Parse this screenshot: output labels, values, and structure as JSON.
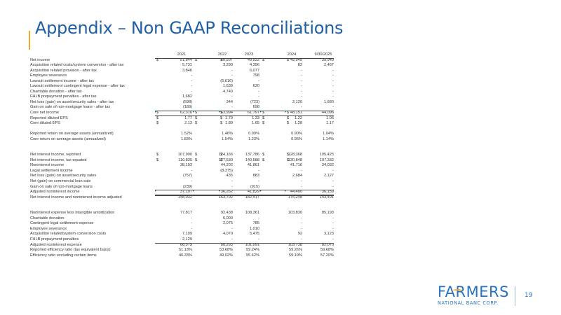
{
  "slide": {
    "title": "Appendix – Non GAAP Reconciliations",
    "accent_color": "#f5a623",
    "title_color": "#1f5fa6",
    "page_number": "19"
  },
  "logo": {
    "name": "FARMERS",
    "subtitle": "NATIONAL BANC CORP."
  },
  "table": {
    "columns": [
      "2021",
      "2022",
      "2023",
      "2024",
      "9/30/2025"
    ],
    "section1": [
      {
        "label": "Net income",
        "cur": true,
        "values": [
          "51,844",
          "60,597",
          "49,932",
          "45,949",
          "39,949"
        ]
      },
      {
        "label": "Acquisition related costs/system conversion - after tax",
        "values": [
          "5,731",
          "3,290",
          "4,396",
          "82",
          "2,467"
        ]
      },
      {
        "label": "Acquisition related provision - after tax",
        "values": [
          "3,846",
          "-",
          "6,077",
          "-",
          "-"
        ]
      },
      {
        "label": "Employee severance",
        "values": [
          "-",
          "-",
          "798",
          "-",
          "-"
        ]
      },
      {
        "label": "Lawsuit settlement income - after tax",
        "values": [
          "-",
          "(6,616)",
          "-",
          "-",
          "-"
        ]
      },
      {
        "label": "Lawsuit settlement contingent legal expense - after tax",
        "values": [
          "-",
          "1,639",
          "620",
          "-",
          "-"
        ]
      },
      {
        "label": "Charitable donation - after tax",
        "values": [
          "-",
          "4,740",
          "-",
          "-",
          "-"
        ]
      },
      {
        "label": "FHLB prepayment penalties - after tax",
        "values": [
          "1,682",
          "-",
          "-",
          "-",
          "-"
        ]
      },
      {
        "label": "Net loss (gain) on asset/security sales - after tax",
        "values": [
          "(598)",
          "344",
          "(723)",
          "2,120",
          "1,680"
        ]
      },
      {
        "label": "Gain on sale of non-mortgage loans - after tax",
        "values": [
          "(189)",
          "-",
          "698",
          "-",
          "-"
        ]
      },
      {
        "label": "Core net income",
        "cur": true,
        "values": [
          "62,316",
          "63,994",
          "61,797",
          "48,151",
          "44,096"
        ]
      },
      {
        "label": "Reported diluted EPS",
        "cur": true,
        "values": [
          "1.77",
          "1.79",
          "1.33",
          "1.22",
          "1.06"
        ]
      },
      {
        "label": "Core diluted EPS",
        "cur": true,
        "values": [
          "2.13",
          "1.89",
          "1.65",
          "1.28",
          "1.17"
        ]
      }
    ],
    "section2": [
      {
        "label": "Reported return on average assets (annualized)",
        "values": [
          "1.52%",
          "1.46%",
          "0.99%",
          "0.90%",
          "1.04%"
        ]
      },
      {
        "label": "Core return on average assets (annualized)",
        "values": [
          "1.83%",
          "1.54%",
          "1.23%",
          "0.95%",
          "1.14%"
        ]
      }
    ],
    "section3": [
      {
        "label": "Net interest income, reported",
        "cur": true,
        "values": [
          "107,990",
          "124,166",
          "137,786",
          "128,368",
          "105,425"
        ]
      },
      {
        "label": "Net interest income, tax equated",
        "cur": true,
        "values": [
          "110,835",
          "127,530",
          "140,588",
          "130,848",
          "107,332"
        ]
      },
      {
        "label": "Noninterest income",
        "values": [
          "38,193",
          "44,202",
          "41,861",
          "41,716",
          "34,032"
        ]
      },
      {
        "label": "Legal settlement income",
        "values": [
          "-",
          "(8,375)",
          "-",
          "-",
          "-"
        ]
      },
      {
        "label": "Net loss (gain) on asset/security sales",
        "values": [
          "(757)",
          "435",
          "883",
          "2,684",
          "2,127"
        ]
      },
      {
        "label": "Net (gain) on commercial loan sale",
        "values": [
          "-",
          "-",
          "-",
          "-",
          "-"
        ]
      },
      {
        "label": "Gain on sale of non-mortgage loans",
        "values": [
          "(239)",
          "-",
          "(915)",
          "-",
          "-"
        ]
      },
      {
        "label": "Adjusted noninterest income",
        "values": [
          "37,197",
          "36,262",
          "41,829",
          "44,400",
          "36,159"
        ]
      },
      {
        "label": "Net interest income and noninterest income adjusted",
        "values": [
          "148,032",
          "163,792",
          "182,417",
          "175,248",
          "143,491"
        ]
      }
    ],
    "section4": [
      {
        "label": "Noninterest expense less intangible amortization",
        "values": [
          "77,817",
          "92,438",
          "108,361",
          "103,830",
          "85,193"
        ]
      },
      {
        "label": "Charitable donation",
        "values": [
          "-",
          "6,000",
          "-",
          "-",
          "-"
        ]
      },
      {
        "label": "Contingent legal settlement expense",
        "values": [
          "-",
          "2,075",
          "785",
          "-",
          "-"
        ]
      },
      {
        "label": "Employee severance",
        "values": [
          "-",
          "-",
          "1,010",
          "-",
          "-"
        ]
      },
      {
        "label": "Acquisition related/system conversion costs",
        "values": [
          "7,109",
          "4,070",
          "5,475",
          "92",
          "3,123"
        ]
      },
      {
        "label": "FHLB prepayment penalties",
        "values": [
          "2,129",
          "-",
          "-",
          "-",
          "-"
        ]
      },
      {
        "label": "Adjusted noninterest expense",
        "values": [
          "68,579",
          "80,293",
          "101,091",
          "103,738",
          "82,070"
        ]
      },
      {
        "label": "Reported efficiency ratio (tax equivalent basis)",
        "values": [
          "51.13%",
          "53.68%",
          "59.24%",
          "59.26%",
          "59.68%"
        ]
      },
      {
        "label": "Efficiency ratio excluding certain items",
        "values": [
          "46.33%",
          "49.02%",
          "55.42%",
          "59.19%",
          "57.20%"
        ]
      }
    ],
    "currency_symbol": "$"
  }
}
